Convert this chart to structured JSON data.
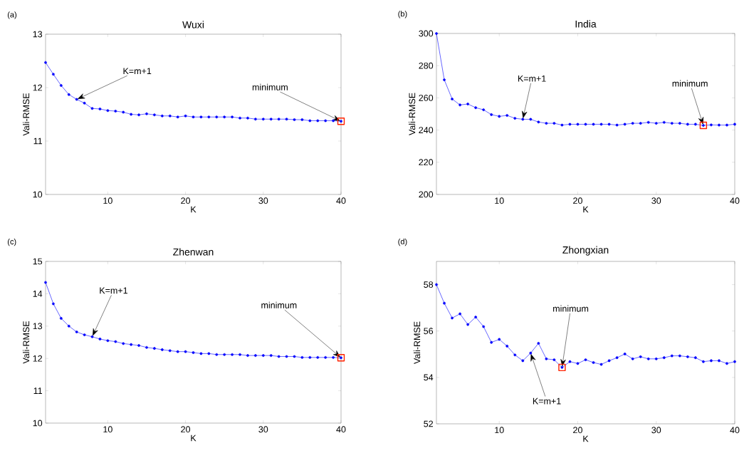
{
  "chart_data": [
    {
      "type": "line",
      "title": "Wuxi",
      "xlabel": "K",
      "ylabel": "Vali-RMSE",
      "xlim": [
        2,
        40
      ],
      "xticks": [
        10,
        20,
        30,
        40
      ],
      "ylim": [
        10,
        13
      ],
      "yticks": [
        10,
        11,
        12,
        13
      ],
      "marker": "circle",
      "x": [
        2,
        3,
        4,
        5,
        6,
        7,
        8,
        9,
        10,
        11,
        12,
        13,
        14,
        15,
        16,
        17,
        18,
        19,
        20,
        21,
        22,
        23,
        24,
        25,
        26,
        27,
        28,
        29,
        30,
        31,
        32,
        33,
        34,
        35,
        36,
        37,
        38,
        39,
        40
      ],
      "series": [
        {
          "color": "#0000ff",
          "values": [
            12.47,
            12.25,
            12.04,
            11.87,
            11.78,
            11.71,
            11.61,
            11.6,
            11.57,
            11.56,
            11.54,
            11.5,
            11.49,
            11.51,
            11.49,
            11.47,
            11.47,
            11.45,
            11.47,
            11.45,
            11.45,
            11.45,
            11.45,
            11.45,
            11.45,
            11.43,
            11.43,
            11.41,
            11.41,
            11.41,
            11.41,
            11.41,
            11.4,
            11.4,
            11.38,
            11.38,
            11.38,
            11.38,
            11.37
          ]
        },
        {
          "type": "scatter",
          "marker": "square",
          "color": "#ff2200",
          "x": [
            40
          ],
          "values": [
            11.37
          ]
        }
      ],
      "annotations": [
        "(a)",
        {
          "text": "K=m+1",
          "x": 6,
          "y": 11.78
        },
        {
          "text": "minimum",
          "x": 40,
          "y": 11.37
        }
      ]
    },
    {
      "type": "line",
      "title": "India",
      "xlabel": "K",
      "ylabel": "Vali-RMSE",
      "xlim": [
        2,
        40
      ],
      "xticks": [
        10,
        20,
        30,
        40
      ],
      "ylim": [
        200,
        300
      ],
      "yticks": [
        200,
        220,
        240,
        260,
        280,
        300
      ],
      "marker": "circle",
      "x": [
        2,
        3,
        4,
        5,
        6,
        7,
        8,
        9,
        10,
        11,
        12,
        13,
        14,
        15,
        16,
        17,
        18,
        19,
        20,
        21,
        22,
        23,
        24,
        25,
        26,
        27,
        28,
        29,
        30,
        31,
        32,
        33,
        34,
        35,
        36,
        37,
        38,
        39,
        40
      ],
      "series": [
        {
          "color": "#0000ff",
          "values": [
            300,
            271.2,
            259.3,
            255.6,
            256.2,
            253.9,
            252.6,
            249.6,
            248.5,
            249.1,
            247.3,
            246.7,
            246.7,
            245,
            244.2,
            244.2,
            243.1,
            243.6,
            243.6,
            243.6,
            243.6,
            243.6,
            243.6,
            243.1,
            243.6,
            244.2,
            244.2,
            244.8,
            244.2,
            244.8,
            244.2,
            244.2,
            243.6,
            243.6,
            242.9,
            243.2,
            243.1,
            243.1,
            243.6
          ]
        },
        {
          "type": "scatter",
          "marker": "square",
          "color": "#ff2200",
          "x": [
            36
          ],
          "values": [
            242.9
          ]
        }
      ],
      "annotations": [
        "(b)",
        {
          "text": "K=m+1",
          "x": 13,
          "y": 246.7
        },
        {
          "text": "minimum",
          "x": 36,
          "y": 242.9
        }
      ]
    },
    {
      "type": "line",
      "title": "Zhenwan",
      "xlabel": "K",
      "ylabel": "Vali-RMSE",
      "xlim": [
        2,
        40
      ],
      "xticks": [
        10,
        20,
        30,
        40
      ],
      "ylim": [
        10,
        15
      ],
      "yticks": [
        10,
        11,
        12,
        13,
        14,
        15
      ],
      "marker": "circle",
      "x": [
        2,
        3,
        4,
        5,
        6,
        7,
        8,
        9,
        10,
        11,
        12,
        13,
        14,
        15,
        16,
        17,
        18,
        19,
        20,
        21,
        22,
        23,
        24,
        25,
        26,
        27,
        28,
        29,
        30,
        31,
        32,
        33,
        34,
        35,
        36,
        37,
        38,
        39,
        40
      ],
      "series": [
        {
          "color": "#0000ff",
          "values": [
            14.35,
            13.69,
            13.24,
            13.0,
            12.82,
            12.73,
            12.67,
            12.6,
            12.55,
            12.52,
            12.46,
            12.43,
            12.4,
            12.34,
            12.31,
            12.27,
            12.24,
            12.21,
            12.21,
            12.18,
            12.15,
            12.15,
            12.12,
            12.12,
            12.12,
            12.12,
            12.09,
            12.09,
            12.09,
            12.09,
            12.06,
            12.06,
            12.06,
            12.03,
            12.03,
            12.03,
            12.03,
            12.03,
            12.02
          ]
        },
        {
          "type": "scatter",
          "marker": "square",
          "color": "#ff2200",
          "x": [
            40
          ],
          "values": [
            12.02
          ]
        }
      ],
      "annotations": [
        "(c)",
        {
          "text": "K=m+1",
          "x": 8,
          "y": 12.67
        },
        {
          "text": "minimum",
          "x": 40,
          "y": 12.02
        }
      ]
    },
    {
      "type": "line",
      "title": "Zhongxian",
      "xlabel": "K",
      "ylabel": "Vali-RMSE",
      "xlim": [
        2,
        40
      ],
      "xticks": [
        10,
        20,
        30,
        40
      ],
      "ylim": [
        52,
        59
      ],
      "yticks": [
        52,
        54,
        56,
        58
      ],
      "marker": "circle",
      "x": [
        2,
        3,
        4,
        5,
        6,
        7,
        8,
        9,
        10,
        11,
        12,
        13,
        14,
        15,
        16,
        17,
        18,
        19,
        20,
        21,
        22,
        23,
        24,
        25,
        26,
        27,
        28,
        29,
        30,
        31,
        32,
        33,
        34,
        35,
        36,
        37,
        38,
        39,
        40
      ],
      "series": [
        {
          "color": "#0000ff",
          "values": [
            58.0,
            57.2,
            56.56,
            56.74,
            56.28,
            56.6,
            56.19,
            55.51,
            55.64,
            55.35,
            54.97,
            54.72,
            55.05,
            55.47,
            54.8,
            54.76,
            54.43,
            54.68,
            54.6,
            54.76,
            54.64,
            54.56,
            54.72,
            54.85,
            55.01,
            54.8,
            54.89,
            54.8,
            54.8,
            54.85,
            54.93,
            54.93,
            54.89,
            54.85,
            54.68,
            54.72,
            54.72,
            54.6,
            54.68
          ]
        },
        {
          "type": "scatter",
          "marker": "square",
          "color": "#ff2200",
          "x": [
            18
          ],
          "values": [
            54.43
          ]
        }
      ],
      "annotations": [
        "(d)",
        {
          "text": "K=m+1",
          "x": 14,
          "y": 55.05
        },
        {
          "text": "minimum",
          "x": 18,
          "y": 54.43
        }
      ]
    }
  ]
}
